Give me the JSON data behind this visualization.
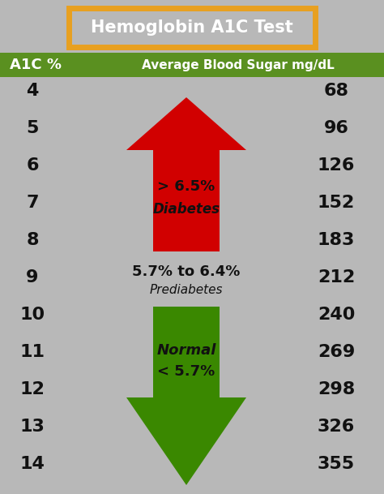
{
  "title": "Hemoglobin A1C Test",
  "title_color": "#ffffff",
  "title_border_color": "#e8a020",
  "header_bg": "#5a9020",
  "header_text_color": "#ffffff",
  "header_left": "A1C %",
  "header_right": "Average Blood Sugar mg/dL",
  "bg_color": "#b8b8b8",
  "a1c_values": [
    4,
    5,
    6,
    7,
    8,
    9,
    10,
    11,
    12,
    13,
    14
  ],
  "sugar_values": [
    68,
    96,
    126,
    152,
    183,
    212,
    240,
    269,
    298,
    326,
    355
  ],
  "red_arrow_label1": "> 6.5%",
  "red_arrow_label2": "Diabetes",
  "green_arrow_label1": "Normal",
  "green_arrow_label2": "< 5.7%",
  "prediabetes_label1": "5.7% to 6.4%",
  "prediabetes_label2": "Prediabetes",
  "red_color": "#d10000",
  "green_color": "#3a8800",
  "text_dark": "#111111",
  "fig_w": 4.74,
  "fig_h": 6.09,
  "dpi": 100
}
